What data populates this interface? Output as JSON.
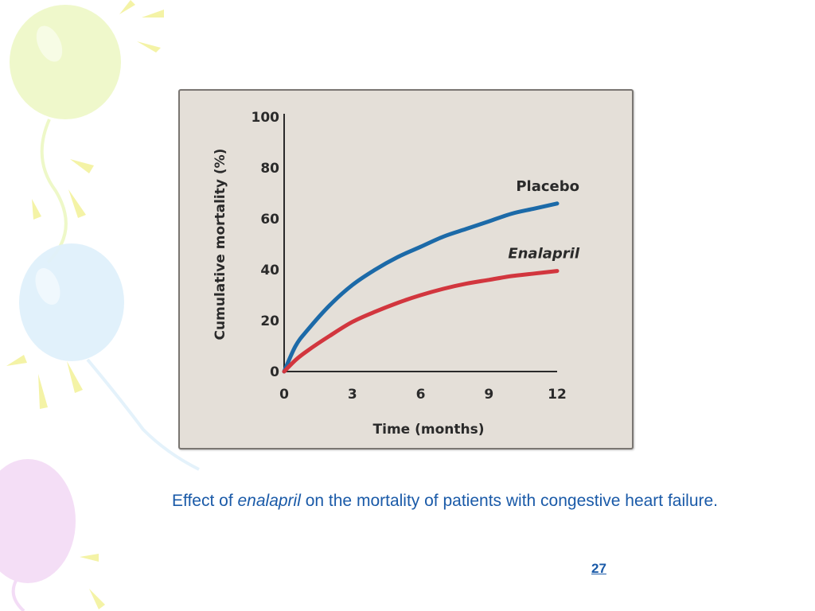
{
  "slide": {
    "caption_before": "Effect of ",
    "caption_italic": "enalapril",
    "caption_after": " on the mortality of patients with congestive heart failure.",
    "page_number": "27"
  },
  "decoration": {
    "balloon_colors": [
      "#eef8c8",
      "#dff0fb",
      "#f3dcf6"
    ],
    "ray_color": "#f4f3a6"
  },
  "chart_data": {
    "type": "line",
    "title": "",
    "xlabel": "Time (months)",
    "ylabel": "Cumulative mortality (%)",
    "xlim": [
      0,
      12
    ],
    "ylim": [
      0,
      100
    ],
    "x_ticks": [
      0,
      3,
      6,
      9,
      12
    ],
    "y_ticks": [
      0,
      20,
      40,
      60,
      80,
      100
    ],
    "grid": false,
    "series": [
      {
        "name": "Placebo",
        "color": "#1c6aa8",
        "x": [
          0,
          0.5,
          1,
          2,
          3,
          4,
          5,
          6,
          7,
          8,
          9,
          10,
          11,
          12
        ],
        "y": [
          0,
          10,
          16,
          26,
          34,
          40,
          45,
          49,
          53,
          56,
          59,
          62,
          64,
          66
        ]
      },
      {
        "name": "Enalapril",
        "color": "#d2363e",
        "x": [
          0,
          0.5,
          1,
          2,
          3,
          4,
          5,
          6,
          7,
          8,
          9,
          10,
          11,
          12
        ],
        "y": [
          0,
          4.5,
          8,
          14,
          19.5,
          23.5,
          27,
          30,
          32.5,
          34.5,
          36,
          37.5,
          38.5,
          39.5
        ]
      }
    ]
  }
}
